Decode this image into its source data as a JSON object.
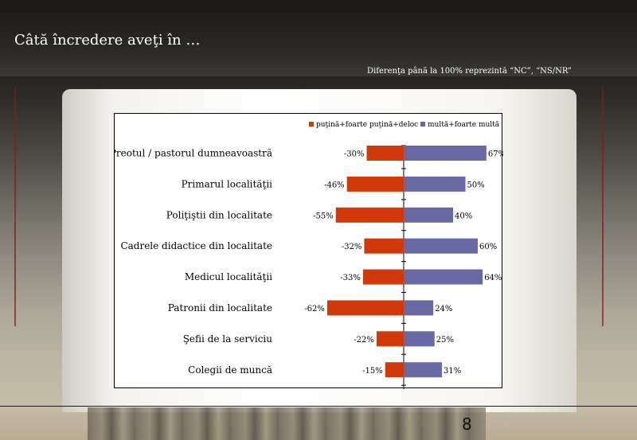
{
  "slide": {
    "title": "Câtă încredere aveţi în …",
    "note": "Diferenţa până la 100% reprezintă “NC”, “NS/NR”",
    "page_number": "8"
  },
  "colors": {
    "negative": "#d03a0a",
    "positive": "#6869a2"
  },
  "chart_data": {
    "type": "bar",
    "orientation": "horizontal-diverging",
    "title": "",
    "xlabel": "",
    "ylabel": "",
    "legend_position": "top-right",
    "grid": false,
    "categories": [
      "Preotul / pastorul dumneavoastră",
      "Primarul localităţii",
      "Poliţiştii din localitate",
      "Cadrele didactice din localitate",
      "Medicul localităţii",
      "Patronii din localitate",
      "Şefii de la serviciu",
      "Colegii de muncă"
    ],
    "series": [
      {
        "name": "puţină+foarte puţină+deloc",
        "values": [
          -30,
          -46,
          -55,
          -32,
          -33,
          -62,
          -22,
          -15
        ],
        "labels": [
          "-30%",
          "-46%",
          "-55%",
          "-32%",
          "-33%",
          "-62%",
          "-22%",
          "-15%"
        ]
      },
      {
        "name": "multă+foarte multă",
        "values": [
          67,
          50,
          40,
          60,
          64,
          24,
          25,
          31
        ],
        "labels": [
          "67%",
          "50%",
          "40%",
          "60%",
          "64%",
          "24%",
          "25%",
          "31%"
        ]
      }
    ]
  }
}
